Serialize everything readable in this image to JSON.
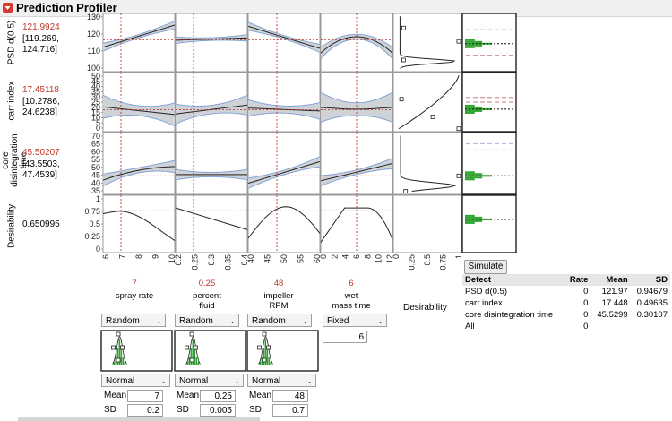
{
  "window": {
    "title": "Prediction Profiler"
  },
  "responses": [
    {
      "label_lines": [
        "PSD d(0.5)"
      ],
      "value": "121.9924",
      "ci": [
        "[119.269,",
        "124.716]"
      ],
      "yticks": [
        "130",
        "120",
        "110",
        "100"
      ]
    },
    {
      "label_lines": [
        "carr index"
      ],
      "value": "17.45118",
      "ci": [
        "[10.2786,",
        "24.6238]"
      ],
      "yticks": [
        "50",
        "45",
        "40",
        "35",
        "30",
        "25",
        "20",
        "15",
        "10",
        "5",
        "0"
      ]
    },
    {
      "label_lines": [
        "core",
        "disintegration",
        "time"
      ],
      "value": "45.50207",
      "ci": [
        "[43.5503,",
        "47.4539]"
      ],
      "yticks": [
        "70",
        "65",
        "60",
        "55",
        "50",
        "45",
        "40",
        "35"
      ]
    },
    {
      "label_lines": [
        "Desirability"
      ],
      "value": "0.650995",
      "ci": [],
      "yticks": [
        "1",
        "0.75",
        "0.5",
        "0.25",
        "0"
      ]
    }
  ],
  "factors": [
    {
      "value": "7",
      "label_lines": [
        "spray rate"
      ],
      "xticks": [
        "6",
        "7",
        "8",
        "9",
        "10"
      ],
      "dist": "Random",
      "dist_type": "Normal",
      "mean": "7",
      "sd": "0.2"
    },
    {
      "value": "0.25",
      "label_lines": [
        "percent",
        "fluid"
      ],
      "xticks": [
        "0.2",
        "0.25",
        "0.3",
        "0.35",
        "0.4"
      ],
      "dist": "Random",
      "dist_type": "Normal",
      "mean": "0.25",
      "sd": "0.005"
    },
    {
      "value": "48",
      "label_lines": [
        "impeller",
        "RPM"
      ],
      "xticks": [
        "40",
        "45",
        "50",
        "55",
        "60"
      ],
      "dist": "Random",
      "dist_type": "Normal",
      "mean": "48",
      "sd": "0.7"
    },
    {
      "value": "6",
      "label_lines": [
        "wet",
        "mass time"
      ],
      "xticks": [
        "0",
        "2",
        "4",
        "6",
        "8",
        "10",
        "12"
      ],
      "dist": "Fixed",
      "fixed_value": "6"
    }
  ],
  "desirability_col": {
    "label": "Desirability",
    "xticks": [
      "0",
      "0.25",
      "0.5",
      "0.75",
      "1"
    ]
  },
  "labels": {
    "mean": "Mean",
    "sd": "SD"
  },
  "simulate_button": "Simulate",
  "defect_table": {
    "headers": [
      "Defect",
      "Rate",
      "Mean",
      "SD"
    ],
    "rows": [
      [
        "PSD d(0.5)",
        "0",
        "121.97",
        "0.94679"
      ],
      [
        "carr index",
        "0",
        "17.448",
        "0.49635"
      ],
      [
        "core disintegration time",
        "0",
        "45.5299",
        "0.30107"
      ],
      [
        "All",
        "0",
        "",
        ""
      ]
    ]
  },
  "colors": {
    "current_value": "#c0392b",
    "ci_band": "#cfd3d8",
    "ci_edge": "#7a9fd6",
    "sim_hist": "#2ea32e",
    "title_button": "#d83a2f"
  }
}
